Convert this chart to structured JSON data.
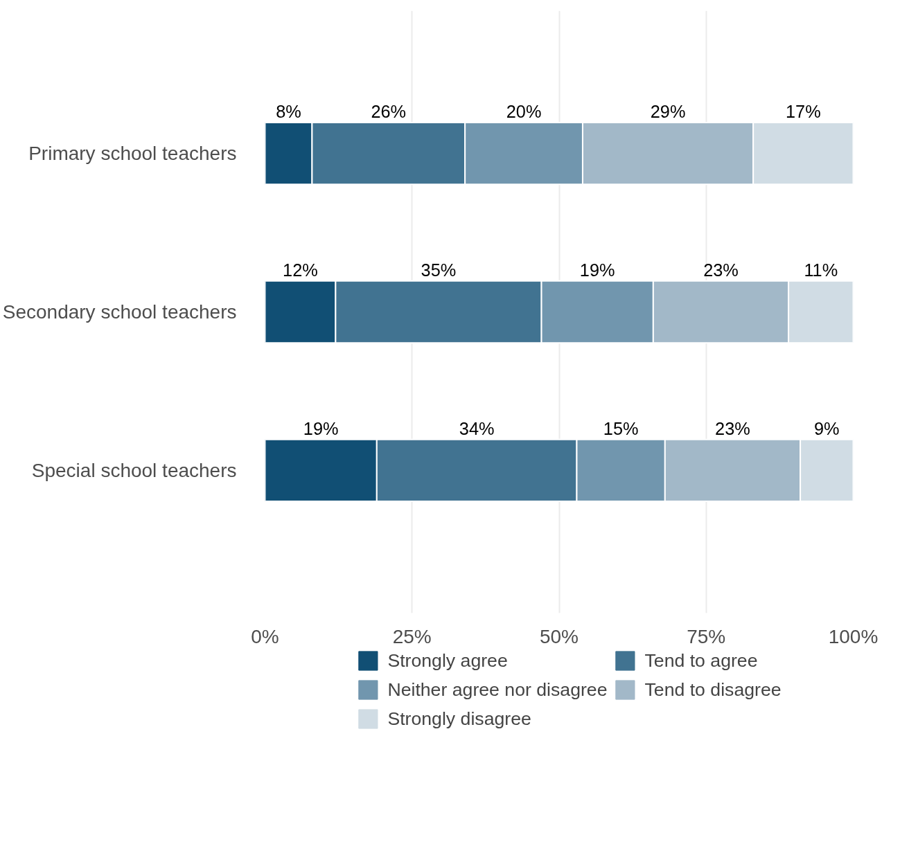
{
  "chart_data": {
    "type": "bar",
    "orientation": "horizontal",
    "stacked": true,
    "categories": [
      "Primary school teachers",
      "Secondary school teachers",
      "Special school teachers"
    ],
    "series": [
      {
        "name": "Strongly agree",
        "color": "#114f74",
        "values": [
          8,
          12,
          19
        ],
        "value_labels": [
          "8%",
          "12%",
          "19%"
        ]
      },
      {
        "name": "Tend to agree",
        "color": "#417391",
        "values": [
          26,
          35,
          34
        ],
        "value_labels": [
          "26%",
          "35%",
          "34%"
        ]
      },
      {
        "name": "Neither agree nor disagree",
        "color": "#7196ae",
        "values": [
          20,
          19,
          15
        ],
        "value_labels": [
          "20%",
          "19%",
          "15%"
        ]
      },
      {
        "name": "Tend to disagree",
        "color": "#a2b8c8",
        "values": [
          29,
          23,
          23
        ],
        "value_labels": [
          "29%",
          "23%",
          "23%"
        ]
      },
      {
        "name": "Strongly disagree",
        "color": "#d0dce4",
        "values": [
          17,
          11,
          9
        ],
        "value_labels": [
          "17%",
          "11%",
          "9%"
        ]
      }
    ],
    "xlim": [
      0,
      100
    ],
    "xticks": [
      {
        "value": 0,
        "label": "0%"
      },
      {
        "value": 25,
        "label": "25%"
      },
      {
        "value": 50,
        "label": "50%"
      },
      {
        "value": 75,
        "label": "75%"
      },
      {
        "value": 100,
        "label": "100%"
      }
    ],
    "grid": "x",
    "legend": "bottom"
  }
}
